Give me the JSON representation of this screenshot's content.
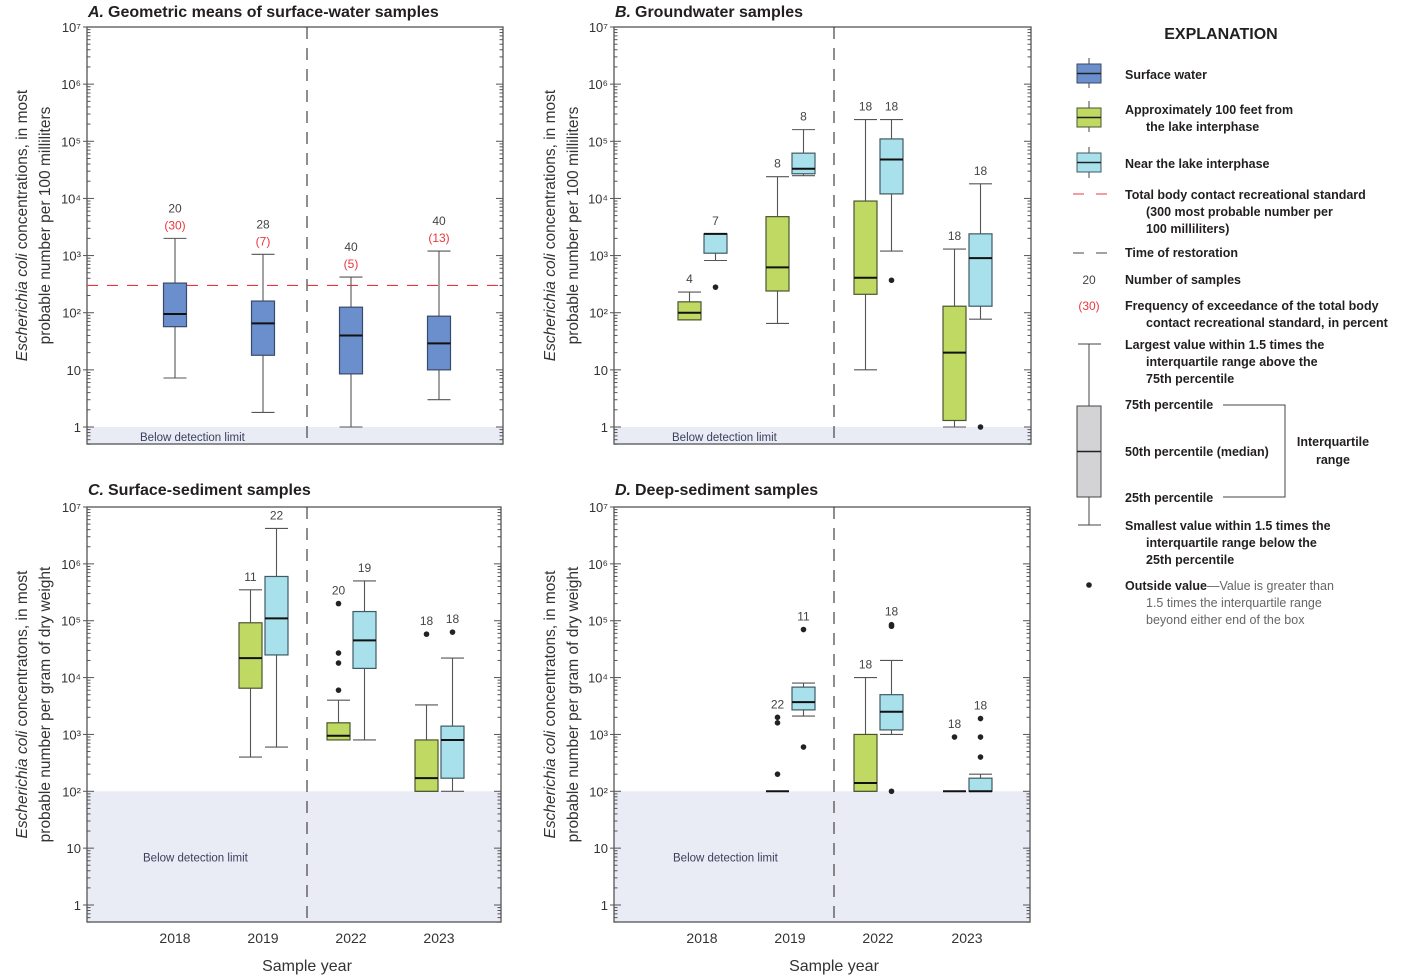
{
  "chart_data": [
    {
      "type": "box",
      "letter": "A.",
      "title": "Geometric means of surface-water samples",
      "ylabel_italic": "Escherichia coli",
      "ylabel_line1": " concentrations, in most",
      "ylabel_line2": "probable number per 100 milliliters",
      "yscale": "log",
      "ylim": [
        0.5,
        10000000
      ],
      "yticks": [
        "1",
        "10",
        "10²",
        "10³",
        "10⁴",
        "10⁵",
        "10⁶",
        "10⁷"
      ],
      "categories": [
        "2018",
        "2019",
        "2022",
        "2023"
      ],
      "detection_limit": 1,
      "detection_label": "Below detection limit",
      "standard": 300,
      "restoration_between": [
        "2019",
        "2022"
      ],
      "series": [
        {
          "name": "Surface water",
          "color": "#6b8fcc",
          "boxes": [
            {
              "year": "2018",
              "n": 20,
              "exceedance": "(30)",
              "whisker_high": 2000,
              "q3": 330,
              "median": 95,
              "q1": 57,
              "whisker_low": 7.2,
              "outliers": []
            },
            {
              "year": "2019",
              "n": 28,
              "exceedance": "(7)",
              "whisker_high": 1050,
              "q3": 160,
              "median": 65,
              "q1": 18,
              "whisker_low": 1.8,
              "outliers": []
            },
            {
              "year": "2022",
              "n": 40,
              "exceedance": "(5)",
              "whisker_high": 420,
              "q3": 125,
              "median": 40,
              "q1": 8.5,
              "whisker_low": 1,
              "outliers": []
            },
            {
              "year": "2023",
              "n": 40,
              "exceedance": "(13)",
              "whisker_high": 1200,
              "q3": 87,
              "median": 29,
              "q1": 10,
              "whisker_low": 3,
              "outliers": []
            }
          ]
        }
      ]
    },
    {
      "type": "box",
      "letter": "B.",
      "title": "Groundwater samples",
      "ylabel_italic": "Escherichia coli",
      "ylabel_line1": " concentrations, in most",
      "ylabel_line2": "probable number per 100 milliliters",
      "yscale": "log",
      "ylim": [
        0.5,
        10000000
      ],
      "yticks": [
        "1",
        "10",
        "10²",
        "10³",
        "10⁴",
        "10⁵",
        "10⁶",
        "10⁷"
      ],
      "categories": [
        "2018",
        "2019",
        "2022",
        "2023"
      ],
      "detection_limit": 1,
      "detection_label": "Below detection limit",
      "restoration_between": [
        "2019",
        "2022"
      ],
      "series": [
        {
          "name": "Approximately 100 feet from the lake interphase",
          "color": "#c0d962",
          "boxes": [
            {
              "year": "2018",
              "n": 4,
              "whisker_high": 230,
              "q3": 155,
              "median": 100,
              "q1": 75,
              "whisker_low": 75,
              "outliers": []
            },
            {
              "year": "2019",
              "n": 8,
              "whisker_high": 24000,
              "q3": 4800,
              "median": 620,
              "q1": 240,
              "whisker_low": 65,
              "outliers": []
            },
            {
              "year": "2022",
              "n": 18,
              "whisker_high": 240000,
              "q3": 9000,
              "median": 410,
              "q1": 210,
              "whisker_low": 10,
              "outliers": []
            },
            {
              "year": "2023",
              "n": 18,
              "whisker_high": 1300,
              "q3": 130,
              "median": 20,
              "q1": 1.3,
              "whisker_low": 1,
              "outliers": []
            }
          ]
        },
        {
          "name": "Near the lake interphase",
          "color": "#a8e0ec",
          "boxes": [
            {
              "year": "2018",
              "n": 7,
              "whisker_high": 2400,
              "q3": 2400,
              "median": 2400,
              "q1": 1100,
              "whisker_low": 820,
              "outliers": [
                280
              ]
            },
            {
              "year": "2019",
              "n": 8,
              "whisker_high": 160000,
              "q3": 62000,
              "median": 33000,
              "q1": 27000,
              "whisker_low": 25000,
              "outliers": []
            },
            {
              "year": "2022",
              "n": 18,
              "whisker_high": 240000,
              "q3": 110000,
              "median": 48000,
              "q1": 12000,
              "whisker_low": 1200,
              "outliers": [
                370
              ]
            },
            {
              "year": "2023",
              "n": 18,
              "whisker_high": 18000,
              "q3": 2400,
              "median": 900,
              "q1": 130,
              "whisker_low": 77,
              "outliers": [
                1
              ]
            }
          ]
        }
      ]
    },
    {
      "type": "box",
      "letter": "C.",
      "title": "Surface-sediment samples",
      "ylabel_italic": "Escherichia coli",
      "ylabel_line1": " concentratons, in most",
      "ylabel_line2": "probable number per gram of dry weight",
      "xlabel": "Sample year",
      "yscale": "log",
      "ylim": [
        0.5,
        10000000
      ],
      "yticks": [
        "1",
        "10",
        "10²",
        "10³",
        "10⁴",
        "10⁵",
        "10⁶",
        "10⁷"
      ],
      "categories": [
        "2018",
        "2019",
        "2022",
        "2023"
      ],
      "detection_limit": 100,
      "detection_label": "Below detection limit",
      "restoration_between": [
        "2019",
        "2022"
      ],
      "series": [
        {
          "name": "Approximately 100 feet from the lake interphase",
          "color": "#c0d962",
          "boxes": [
            {
              "year": "2019",
              "n": 11,
              "whisker_high": 350000,
              "q3": 92000,
              "median": 22000,
              "q1": 6500,
              "whisker_low": 400,
              "outliers": []
            },
            {
              "year": "2022",
              "n": 20,
              "whisker_high": 4000,
              "q3": 1600,
              "median": 950,
              "q1": 800,
              "whisker_low": 800,
              "outliers": [
                200000,
                27000,
                18000,
                6000
              ]
            },
            {
              "year": "2023",
              "n": 18,
              "whisker_high": 3300,
              "q3": 800,
              "median": 170,
              "q1": 100,
              "whisker_low": 100,
              "outliers": [
                58000
              ]
            }
          ]
        },
        {
          "name": "Near the lake interphase",
          "color": "#a8e0ec",
          "boxes": [
            {
              "year": "2019",
              "n": 22,
              "whisker_high": 4200000,
              "q3": 600000,
              "median": 110000,
              "q1": 25000,
              "whisker_low": 600,
              "outliers": []
            },
            {
              "year": "2022",
              "n": 19,
              "whisker_high": 500000,
              "q3": 145000,
              "median": 45000,
              "q1": 14500,
              "whisker_low": 800,
              "outliers": []
            },
            {
              "year": "2023",
              "n": 18,
              "whisker_high": 22000,
              "q3": 1400,
              "median": 800,
              "q1": 170,
              "whisker_low": 100,
              "outliers": [
                63000
              ]
            }
          ]
        }
      ]
    },
    {
      "type": "box",
      "letter": "D.",
      "title": "Deep-sediment samples",
      "ylabel_italic": "Escherichia coli",
      "ylabel_line1": " concentratons, in most",
      "ylabel_line2": "probable number per gram of dry weight",
      "xlabel": "Sample year",
      "yscale": "log",
      "ylim": [
        0.5,
        10000000
      ],
      "yticks": [
        "1",
        "10",
        "10²",
        "10³",
        "10⁴",
        "10⁵",
        "10⁶",
        "10⁷"
      ],
      "categories": [
        "2018",
        "2019",
        "2022",
        "2023"
      ],
      "detection_limit": 100,
      "detection_label": "Below detection limit",
      "restoration_between": [
        "2019",
        "2022"
      ],
      "series": [
        {
          "name": "Approximately 100 feet from the lake interphase",
          "color": "#c0d962",
          "boxes": [
            {
              "year": "2019",
              "n": 22,
              "whisker_high": 100,
              "q3": 100,
              "median": 100,
              "q1": 100,
              "whisker_low": 100,
              "outliers": [
                2000,
                1600,
                200
              ]
            },
            {
              "year": "2022",
              "n": 18,
              "whisker_high": 10000,
              "q3": 1000,
              "median": 140,
              "q1": 100,
              "whisker_low": 100,
              "outliers": []
            },
            {
              "year": "2023",
              "n": 18,
              "whisker_high": 100,
              "q3": 100,
              "median": 100,
              "q1": 100,
              "whisker_low": 100,
              "outliers": [
                900
              ]
            }
          ]
        },
        {
          "name": "Near the lake interphase",
          "color": "#a8e0ec",
          "boxes": [
            {
              "year": "2019",
              "n": 11,
              "whisker_high": 8000,
              "q3": 6800,
              "median": 3700,
              "q1": 2700,
              "whisker_low": 2100,
              "outliers": [
                70000,
                600
              ]
            },
            {
              "year": "2022",
              "n": 18,
              "whisker_high": 20000,
              "q3": 5000,
              "median": 2500,
              "q1": 1200,
              "whisker_low": 1000,
              "outliers": [
                85000,
                80000,
                100
              ]
            },
            {
              "year": "2023",
              "n": 18,
              "whisker_high": 200,
              "q3": 170,
              "median": 100,
              "q1": 100,
              "whisker_low": 100,
              "outliers": [
                1900,
                900,
                400
              ]
            }
          ]
        }
      ]
    }
  ],
  "legend": {
    "heading": "EXPLANATION",
    "surface_water": "Surface water",
    "approx_100ft_1": "Approximately 100 feet from",
    "approx_100ft_2": "the lake interphase",
    "near_lake": "Near the lake interphase",
    "standard_1": "Total body contact recreational standard",
    "standard_2": "(300 most probable number per",
    "standard_3": "100 milliliters)",
    "restoration": "Time of restoration",
    "n_example": "20",
    "n_label": "Number of samples",
    "exc_example": "(30)",
    "exc_1": "Frequency of exceedance of the total body",
    "exc_2": "contact recreational standard, in percent",
    "largest_1": "Largest value within 1.5 times the",
    "largest_2": "interquartile range above the",
    "largest_3": "75th percentile",
    "p75": "75th percentile",
    "p50": "50th percentile (median)",
    "p25": "25th percentile",
    "iqr_1": "Interquartile",
    "iqr_2": "range",
    "smallest_1": "Smallest value within 1.5 times the",
    "smallest_2": "interquartile range below the",
    "smallest_3": "25th percentile",
    "outside_bold": "Outside value",
    "outside_1": "—Value is greater than",
    "outside_2": "1.5 times the interquartile range",
    "outside_3": "beyond either end of the box",
    "colors": {
      "surface_water": "#6b8fcc",
      "approx_100ft": "#c0d962",
      "near_lake": "#a8e0ec",
      "standard": "#e8383f",
      "below_detection": "#e9ebf5",
      "box_explanation": "#d3d3d5"
    }
  }
}
